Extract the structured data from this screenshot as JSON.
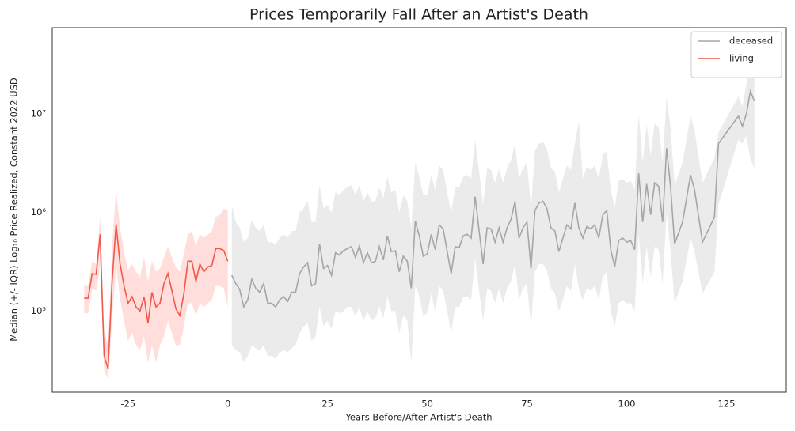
{
  "chart_data": {
    "type": "line",
    "title": "Prices Temporarily Fall After an Artist's Death",
    "x_label": "Years Before/After Artist's Death",
    "y_label": "Median (+/- IQR) Log₁₀ Price Realized, Constant 2022 USD",
    "log_y": true,
    "grid": false,
    "legend": "upper right",
    "xlim": [
      -44,
      140
    ],
    "ylim": [
      15000,
      75000000
    ],
    "xticks": [
      -25,
      0,
      25,
      50,
      75,
      100,
      125
    ],
    "yticks": [
      {
        "value": 100000,
        "label": "10⁵"
      },
      {
        "value": 1000000,
        "label": "10⁶"
      },
      {
        "value": 10000000,
        "label": "10⁷"
      }
    ],
    "series": [
      {
        "name": "deceased",
        "color": "#a6a6a6",
        "band_color": "#e6e6e6",
        "x": [
          1,
          2,
          3,
          4,
          5,
          6,
          7,
          8,
          9,
          10,
          11,
          12,
          13,
          14,
          15,
          16,
          17,
          18,
          19,
          20,
          21,
          22,
          23,
          24,
          25,
          26,
          27,
          28,
          29,
          30,
          31,
          32,
          33,
          34,
          35,
          36,
          37,
          38,
          39,
          40,
          41,
          42,
          43,
          44,
          45,
          46,
          47,
          48,
          49,
          50,
          51,
          52,
          53,
          54,
          55,
          56,
          57,
          58,
          59,
          60,
          61,
          62,
          63,
          64,
          65,
          66,
          67,
          68,
          69,
          70,
          71,
          72,
          73,
          74,
          75,
          76,
          77,
          78,
          79,
          80,
          81,
          82,
          83,
          84,
          85,
          86,
          87,
          88,
          89,
          90,
          91,
          92,
          93,
          94,
          95,
          96,
          97,
          98,
          99,
          100,
          101,
          102,
          103,
          104,
          105,
          106,
          107,
          108,
          109,
          110,
          111,
          112,
          114,
          116,
          117,
          119,
          122,
          123,
          128,
          129,
          130,
          131,
          132
        ],
        "values": [
          230000,
          190000,
          165000,
          110000,
          130000,
          210000,
          170000,
          155000,
          190000,
          120000,
          120000,
          110000,
          130000,
          140000,
          125000,
          155000,
          155000,
          240000,
          280000,
          310000,
          180000,
          190000,
          480000,
          270000,
          290000,
          230000,
          390000,
          370000,
          410000,
          430000,
          450000,
          350000,
          460000,
          310000,
          390000,
          310000,
          320000,
          450000,
          330000,
          580000,
          400000,
          410000,
          250000,
          360000,
          320000,
          170000,
          820000,
          580000,
          360000,
          380000,
          600000,
          420000,
          750000,
          680000,
          400000,
          240000,
          450000,
          440000,
          580000,
          600000,
          550000,
          1450000,
          650000,
          300000,
          700000,
          680000,
          500000,
          700000,
          500000,
          700000,
          850000,
          1300000,
          550000,
          700000,
          800000,
          270000,
          1050000,
          1250000,
          1300000,
          1100000,
          700000,
          650000,
          400000,
          550000,
          750000,
          680000,
          1250000,
          700000,
          550000,
          720000,
          680000,
          750000,
          550000,
          950000,
          1050000,
          420000,
          280000,
          520000,
          550000,
          500000,
          520000,
          420000,
          2500000,
          800000,
          1950000,
          950000,
          2000000,
          1850000,
          800000,
          4500000,
          1800000,
          480000,
          800000,
          2400000,
          1700000,
          500000,
          900000,
          5000000,
          9500000,
          7500000,
          10000000,
          17000000,
          13500000
        ],
        "lower": [
          45000,
          40000,
          38000,
          30000,
          35000,
          45000,
          42000,
          40000,
          45000,
          35000,
          35000,
          33000,
          38000,
          40000,
          38000,
          42000,
          45000,
          60000,
          70000,
          75000,
          50000,
          55000,
          110000,
          70000,
          80000,
          65000,
          100000,
          95000,
          100000,
          110000,
          110000,
          90000,
          110000,
          80000,
          100000,
          80000,
          85000,
          110000,
          85000,
          140000,
          100000,
          100000,
          60000,
          90000,
          80000,
          30000,
          180000,
          140000,
          90000,
          95000,
          150000,
          100000,
          180000,
          160000,
          100000,
          60000,
          110000,
          110000,
          140000,
          140000,
          130000,
          350000,
          160000,
          80000,
          170000,
          160000,
          120000,
          170000,
          120000,
          170000,
          200000,
          300000,
          130000,
          170000,
          190000,
          70000,
          250000,
          300000,
          300000,
          260000,
          170000,
          150000,
          100000,
          130000,
          180000,
          160000,
          300000,
          170000,
          130000,
          170000,
          160000,
          180000,
          130000,
          220000,
          250000,
          100000,
          70000,
          120000,
          130000,
          120000,
          120000,
          100000,
          600000,
          190000,
          450000,
          220000,
          450000,
          420000,
          190000,
          1000000,
          400000,
          120000,
          200000,
          550000,
          400000,
          150000,
          250000,
          1200000,
          5500000,
          5000000,
          6000000,
          3500000,
          2800000
        ],
        "upper": [
          1200000,
          800000,
          700000,
          500000,
          550000,
          850000,
          700000,
          650000,
          750000,
          500000,
          500000,
          480000,
          550000,
          600000,
          550000,
          650000,
          650000,
          1000000,
          1100000,
          1300000,
          800000,
          800000,
          1900000,
          1100000,
          1200000,
          1000000,
          1600000,
          1500000,
          1700000,
          1800000,
          1900000,
          1500000,
          1900000,
          1300000,
          1600000,
          1300000,
          1300000,
          1800000,
          1400000,
          2300000,
          1600000,
          1700000,
          1000000,
          1500000,
          1300000,
          700000,
          3200000,
          2300000,
          1500000,
          1500000,
          2400000,
          1700000,
          3000000,
          2700000,
          1600000,
          1000000,
          1800000,
          1800000,
          2300000,
          2400000,
          2200000,
          5500000,
          2600000,
          1200000,
          2800000,
          2700000,
          2000000,
          2800000,
          2000000,
          2800000,
          3400000,
          5000000,
          2200000,
          2800000,
          3200000,
          1100000,
          4200000,
          5000000,
          5200000,
          4400000,
          2800000,
          2600000,
          1600000,
          2200000,
          3000000,
          2700000,
          5000000,
          8500000,
          2200000,
          2900000,
          2700000,
          3000000,
          2200000,
          3800000,
          4200000,
          1700000,
          1100000,
          2100000,
          2200000,
          2000000,
          2100000,
          1700000,
          10000000,
          3200000,
          7800000,
          3800000,
          8000000,
          7400000,
          3200000,
          15000000,
          7200000,
          1900000,
          3200000,
          9500000,
          6800000,
          2000000,
          3600000,
          6500000,
          15000000,
          12000000,
          20000000,
          50000000,
          45000000
        ]
      },
      {
        "name": "living",
        "color": "#f05a4a",
        "band_color": "#ffd6d2",
        "x": [
          -36,
          -35,
          -34,
          -33,
          -32,
          -31,
          -30,
          -29,
          -28,
          -27,
          -26,
          -25,
          -24,
          -23,
          -22,
          -21,
          -20,
          -19,
          -18,
          -17,
          -16,
          -15,
          -14,
          -13,
          -12,
          -11,
          -10,
          -9,
          -8,
          -7,
          -6,
          -5,
          -4,
          -3,
          -2,
          -1,
          0
        ],
        "values": [
          135000,
          135000,
          240000,
          235000,
          600000,
          35000,
          26000,
          200000,
          760000,
          300000,
          180000,
          120000,
          140000,
          110000,
          100000,
          140000,
          75000,
          155000,
          110000,
          120000,
          190000,
          240000,
          160000,
          105000,
          90000,
          150000,
          320000,
          320000,
          200000,
          300000,
          250000,
          280000,
          290000,
          430000,
          430000,
          410000,
          320000
        ],
        "lower": [
          95000,
          95000,
          170000,
          160000,
          300000,
          25000,
          20000,
          80000,
          300000,
          130000,
          80000,
          50000,
          60000,
          45000,
          40000,
          55000,
          30000,
          45000,
          30000,
          45000,
          55000,
          80000,
          60000,
          45000,
          45000,
          70000,
          120000,
          120000,
          90000,
          120000,
          110000,
          120000,
          130000,
          180000,
          180000,
          170000,
          110000
        ],
        "upper": [
          180000,
          180000,
          320000,
          300000,
          900000,
          60000,
          45000,
          450000,
          1700000,
          700000,
          400000,
          260000,
          300000,
          250000,
          220000,
          350000,
          200000,
          320000,
          250000,
          270000,
          350000,
          450000,
          350000,
          280000,
          250000,
          380000,
          600000,
          650000,
          450000,
          600000,
          550000,
          600000,
          650000,
          900000,
          950000,
          1100000,
          1050000
        ]
      }
    ]
  }
}
